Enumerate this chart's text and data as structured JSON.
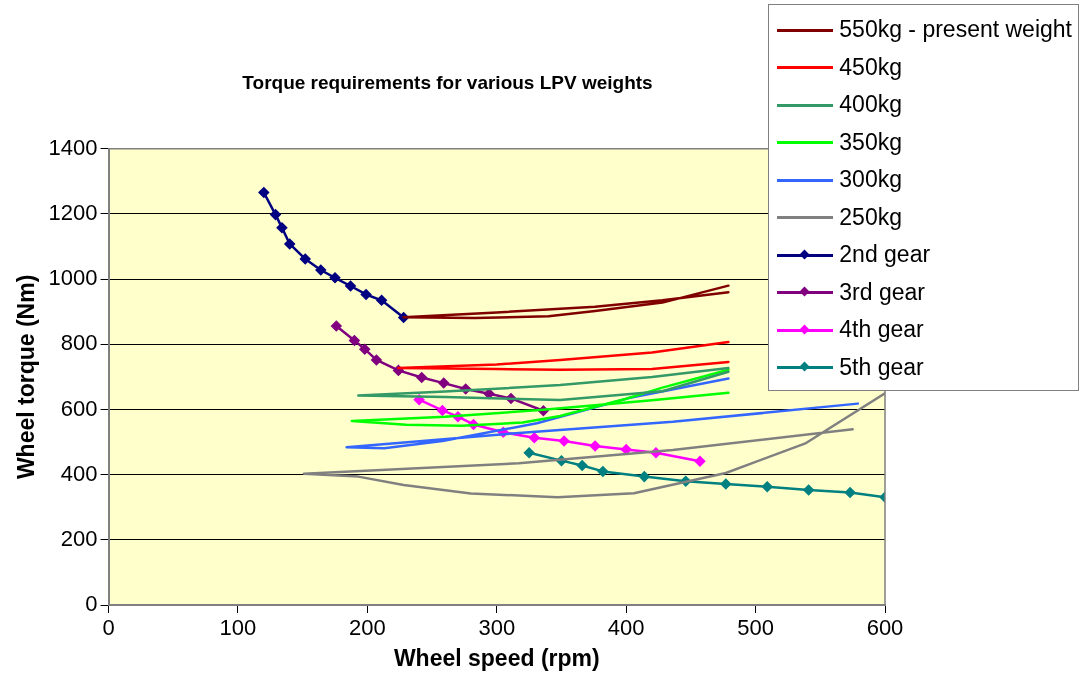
{
  "chart_data": {
    "type": "line",
    "title": "Torque requirements for various LPV weights",
    "xlabel": "Wheel speed (rpm)",
    "ylabel": "Wheel torque (Nm)",
    "xlim": [
      0,
      600
    ],
    "xticks": [
      0,
      100,
      200,
      300,
      400,
      500,
      600
    ],
    "ylim": [
      0,
      1400
    ],
    "yticks": [
      0,
      200,
      400,
      600,
      800,
      1000,
      1200,
      1400
    ],
    "grid": "y",
    "legend": "top right",
    "line_style": "solid",
    "series": [
      {
        "name": "550kg - present weight",
        "color": "#800000",
        "marker": "none",
        "x": [
          479,
          428,
          376,
          340,
          283,
          228,
          300,
          376,
          428,
          479
        ],
        "values": [
          980,
          928,
          902,
          886,
          881,
          883,
          898,
          915,
          935,
          960
        ]
      },
      {
        "name": "450kg",
        "color": "#ff0000",
        "marker": "none",
        "x": [
          479,
          420,
          349,
          300,
          224,
          300,
          349,
          420,
          479
        ],
        "values": [
          746,
          724,
          722,
          724,
          727,
          738,
          752,
          775,
          807
        ]
      },
      {
        "name": "400kg",
        "color": "#339966",
        "marker": "none",
        "x": [
          479,
          428,
          349,
          260,
          193,
          260,
          349,
          420,
          479
        ],
        "values": [
          716,
          656,
          629,
          638,
          643,
          655,
          675,
          700,
          727
        ]
      },
      {
        "name": "350kg",
        "color": "#00ff00",
        "marker": "none",
        "x": [
          479,
          428,
          400,
          349,
          320,
          273,
          230,
          188,
          260,
          336,
          420,
          479
        ],
        "values": [
          722,
          667,
          633,
          580,
          560,
          550,
          553,
          565,
          578,
          599,
          628,
          651
        ]
      },
      {
        "name": "300kg",
        "color": "#3366ff",
        "marker": "none",
        "x": [
          479,
          402,
          331,
          258,
          213,
          184,
          317,
          436,
          579
        ],
        "values": [
          695,
          635,
          558,
          503,
          481,
          484,
          528,
          562,
          618
        ]
      },
      {
        "name": "250kg",
        "color": "#808080",
        "marker": "none",
        "x": [
          600,
          539,
          477,
          406,
          347,
          280,
          228,
          193,
          151,
          317,
          436,
          575
        ],
        "values": [
          650,
          497,
          405,
          343,
          331,
          342,
          368,
          394,
          403,
          435,
          476,
          539
        ]
      },
      {
        "name": "2nd gear",
        "color": "#000080",
        "marker": "diamond",
        "x": [
          120,
          129,
          134,
          140,
          152,
          164,
          175,
          187,
          199,
          211,
          228
        ],
        "values": [
          1266,
          1198,
          1158,
          1108,
          1062,
          1028,
          1004,
          979,
          953,
          935,
          882
        ]
      },
      {
        "name": "3rd gear",
        "color": "#800080",
        "marker": "diamond",
        "x": [
          176,
          190,
          198,
          207,
          224,
          242,
          259,
          276,
          294,
          311,
          336
        ],
        "values": [
          856,
          812,
          785,
          752,
          720,
          698,
          681,
          663,
          648,
          634,
          596
        ]
      },
      {
        "name": "4th gear",
        "color": "#ff00ff",
        "marker": "diamond",
        "x": [
          240,
          258,
          270,
          282,
          305,
          329,
          352,
          376,
          400,
          423,
          457
        ],
        "values": [
          630,
          597,
          578,
          554,
          530,
          513,
          503,
          488,
          477,
          467,
          441
        ]
      },
      {
        "name": "5th gear",
        "color": "#008080",
        "marker": "diamond",
        "x": [
          325,
          350,
          366,
          382,
          414,
          446,
          477,
          509,
          541,
          573,
          600
        ],
        "values": [
          467,
          443,
          428,
          410,
          394,
          380,
          371,
          363,
          353,
          345,
          331
        ]
      }
    ]
  }
}
